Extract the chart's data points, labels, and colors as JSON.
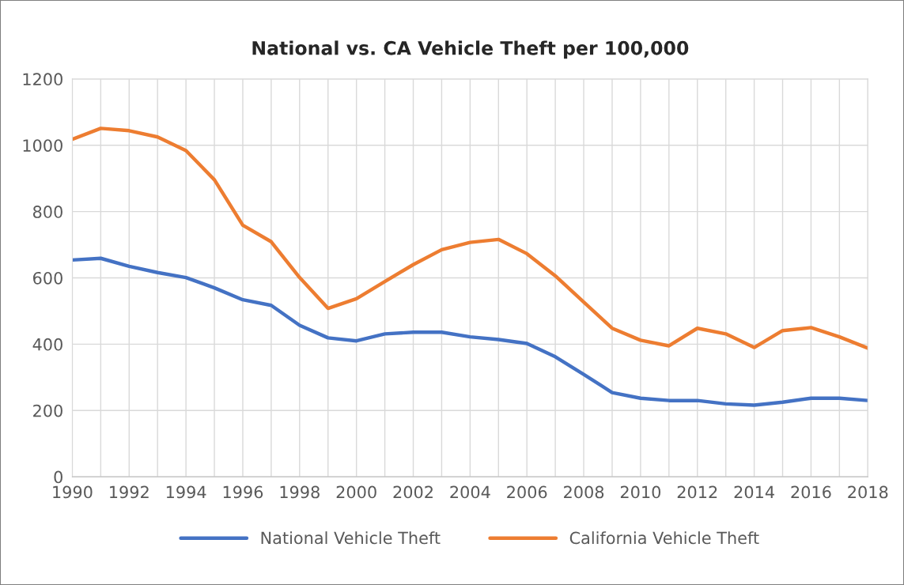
{
  "chart_data": {
    "type": "line",
    "title": "National vs. CA Vehicle Theft per 100,000",
    "x": [
      1990,
      1991,
      1992,
      1993,
      1994,
      1995,
      1996,
      1997,
      1998,
      1999,
      2000,
      2001,
      2002,
      2003,
      2004,
      2005,
      2006,
      2007,
      2008,
      2009,
      2010,
      2011,
      2012,
      2013,
      2014,
      2015,
      2016,
      2017,
      2018
    ],
    "series": [
      {
        "name": "National Vehicle Theft",
        "color": "#4472c4",
        "values": [
          654,
          659,
          635,
          616,
          601,
          570,
          534,
          517,
          457,
          419,
          410,
          431,
          436,
          436,
          422,
          414,
          402,
          362,
          309,
          254,
          237,
          230,
          230,
          220,
          216,
          225,
          237,
          237,
          230
        ]
      },
      {
        "name": "California Vehicle Theft",
        "color": "#ed7d31",
        "values": [
          1018,
          1051,
          1044,
          1025,
          984,
          896,
          759,
          709,
          601,
          508,
          537,
          589,
          640,
          685,
          707,
          716,
          673,
          606,
          527,
          448,
          412,
          395,
          448,
          431,
          390,
          441,
          450,
          422,
          388
        ]
      }
    ],
    "xlim": [
      1990,
      2018
    ],
    "xticks": [
      1990,
      {
        "value": 1991,
        "label": null
      },
      1992,
      {
        "value": 1993,
        "label": null
      },
      1994,
      {
        "value": 1995,
        "label": null
      },
      1996,
      {
        "value": 1997,
        "label": null
      },
      1998,
      {
        "value": 1999,
        "label": null
      },
      2000,
      {
        "value": 2001,
        "label": null
      },
      2002,
      {
        "value": 2003,
        "label": null
      },
      2004,
      {
        "value": 2005,
        "label": null
      },
      2006,
      {
        "value": 2007,
        "label": null
      },
      2008,
      {
        "value": 2009,
        "label": null
      },
      2010,
      {
        "value": 2011,
        "label": null
      },
      2012,
      {
        "value": 2013,
        "label": null
      },
      2014,
      {
        "value": 2015,
        "label": null
      },
      2016,
      {
        "value": 2017,
        "label": null
      },
      2018
    ],
    "ylim": [
      0,
      1200
    ],
    "yticks": [
      0,
      200,
      400,
      600,
      800,
      1000,
      1200
    ],
    "grid": true,
    "legend": "bottom",
    "marker": "none",
    "line_style": "solid"
  }
}
